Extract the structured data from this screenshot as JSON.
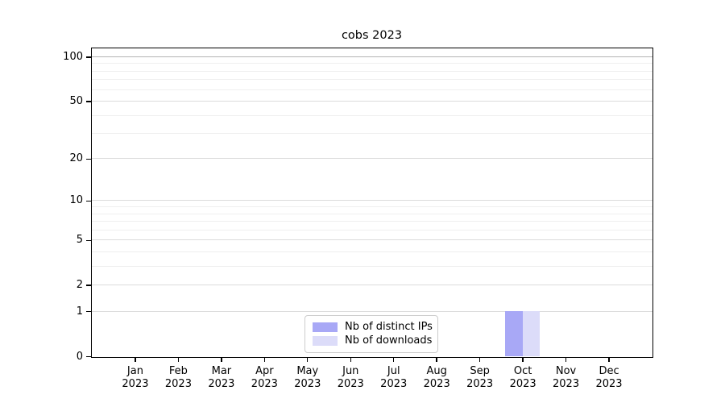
{
  "chart_data": {
    "type": "bar",
    "title": "cobs 2023",
    "categories": [
      "Jan",
      "Feb",
      "Mar",
      "Apr",
      "May",
      "Jun",
      "Jul",
      "Aug",
      "Sep",
      "Oct",
      "Nov",
      "Dec"
    ],
    "tick_year": "2023",
    "series": [
      {
        "name": "Nb of distinct IPs",
        "color": "#a8a8f6",
        "values": [
          0,
          0,
          0,
          0,
          0,
          0,
          0,
          0,
          0,
          1,
          0,
          0
        ]
      },
      {
        "name": "Nb of downloads",
        "color": "#dcdcf9",
        "values": [
          0,
          0,
          0,
          0,
          0,
          0,
          0,
          0,
          0,
          1,
          0,
          0
        ]
      }
    ],
    "xlabel": "",
    "ylabel": "",
    "yscale": "log1p",
    "ylim": [
      0,
      114
    ],
    "yticks": [
      0,
      1,
      2,
      5,
      10,
      20,
      50,
      100
    ],
    "minor_gridlines": [
      3,
      4,
      6,
      7,
      8,
      9,
      30,
      40,
      60,
      70,
      80,
      90
    ],
    "grid": "horizontal",
    "legend_position": "lower-center-inside",
    "bar_width_fraction": 0.4
  },
  "colors": {
    "grid_major": "#dcdcdc",
    "grid_minor": "#efefef",
    "grid_top_line": "#b4b4b4",
    "spine": "#000000",
    "background": "#ffffff",
    "text": "#000000"
  }
}
